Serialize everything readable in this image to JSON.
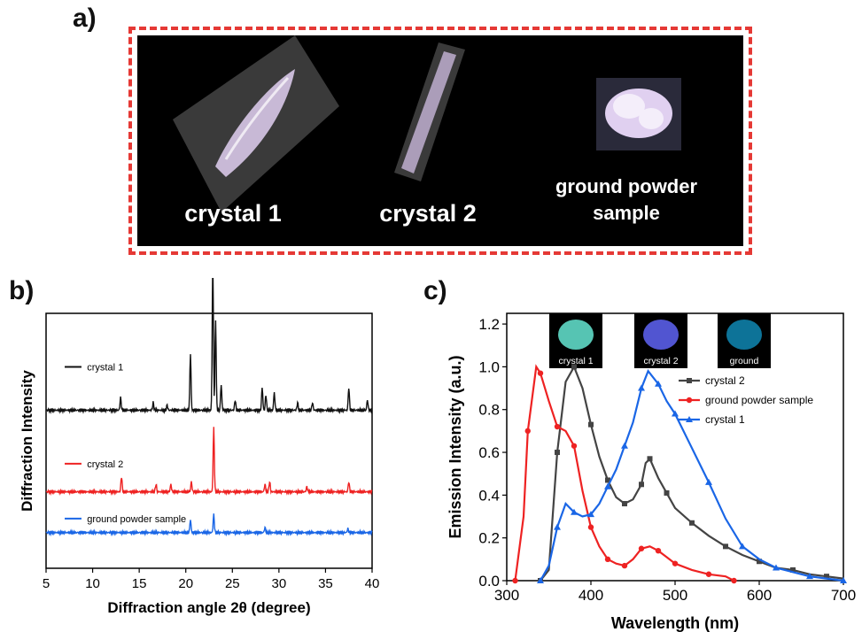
{
  "panel_a": {
    "label": "a)",
    "photo_labels": [
      "crystal 1",
      "crystal 2",
      "ground powder sample"
    ],
    "photo_label_lines": [
      [
        "crystal 1"
      ],
      [
        "crystal 2"
      ],
      [
        "ground powder",
        "sample"
      ]
    ]
  },
  "panel_b": {
    "label": "b)"
  },
  "panel_c": {
    "label": "c)",
    "inset_labels": [
      "crystal 1",
      "crystal 2",
      "ground"
    ]
  },
  "colors": {
    "black": "#111111",
    "red": "#ee2222",
    "blue": "#1a66e6",
    "gray": "#444444",
    "dashed_border": "#e53935"
  },
  "chart_data": [
    {
      "type": "line",
      "panel": "b",
      "xlabel": "Diffraction angle 2θ (degree)",
      "ylabel": "Diffraction Intensity",
      "xlim": [
        5,
        40
      ],
      "xticks": [
        5,
        10,
        15,
        20,
        25,
        30,
        35,
        40
      ],
      "legend": "inline labels above each trace",
      "series": [
        {
          "name": "crystal 1",
          "color": "#111111",
          "offset": 0.62,
          "peaks": [
            [
              13.0,
              0.05
            ],
            [
              16.5,
              0.03
            ],
            [
              18.0,
              0.02
            ],
            [
              20.5,
              0.22
            ],
            [
              22.9,
              0.6
            ],
            [
              23.2,
              0.35
            ],
            [
              23.8,
              0.1
            ],
            [
              25.3,
              0.04
            ],
            [
              28.2,
              0.09
            ],
            [
              28.6,
              0.06
            ],
            [
              29.5,
              0.07
            ],
            [
              32.0,
              0.03
            ],
            [
              33.6,
              0.03
            ],
            [
              37.5,
              0.09
            ],
            [
              39.5,
              0.04
            ]
          ]
        },
        {
          "name": "crystal 2",
          "color": "#ee2222",
          "offset": 0.3,
          "peaks": [
            [
              13.1,
              0.06
            ],
            [
              16.8,
              0.03
            ],
            [
              18.4,
              0.03
            ],
            [
              20.6,
              0.04
            ],
            [
              23.0,
              0.25
            ],
            [
              28.5,
              0.03
            ],
            [
              29.0,
              0.04
            ],
            [
              33.0,
              0.02
            ],
            [
              37.5,
              0.04
            ]
          ]
        },
        {
          "name": "ground powder sample",
          "color": "#1a66e6",
          "offset": 0.14,
          "peaks": [
            [
              20.5,
              0.05
            ],
            [
              23.0,
              0.07
            ],
            [
              28.5,
              0.02
            ],
            [
              37.4,
              0.015
            ]
          ]
        }
      ]
    },
    {
      "type": "line",
      "panel": "c",
      "xlabel": "Wavelength (nm)",
      "ylabel": "Emission Intensity (a.u.)",
      "xlim": [
        300,
        700
      ],
      "ylim": [
        0,
        1.25
      ],
      "xticks": [
        300,
        400,
        500,
        600,
        700
      ],
      "yticks": [
        0.0,
        0.2,
        0.4,
        0.6,
        0.8,
        1.0,
        1.2
      ],
      "legend": "center-right",
      "series": [
        {
          "name": "crystal 2",
          "color": "#444444",
          "marker": "square",
          "x": [
            340,
            350,
            360,
            370,
            380,
            390,
            400,
            410,
            420,
            430,
            440,
            450,
            460,
            465,
            470,
            480,
            490,
            500,
            520,
            540,
            560,
            580,
            600,
            620,
            640,
            660,
            680,
            700
          ],
          "y": [
            0.0,
            0.05,
            0.6,
            0.93,
            1.0,
            0.9,
            0.73,
            0.58,
            0.47,
            0.39,
            0.36,
            0.38,
            0.45,
            0.55,
            0.57,
            0.48,
            0.41,
            0.34,
            0.27,
            0.21,
            0.16,
            0.12,
            0.09,
            0.06,
            0.05,
            0.03,
            0.02,
            0.01
          ]
        },
        {
          "name": "ground powder sample",
          "color": "#ee2222",
          "marker": "circle",
          "x": [
            310,
            320,
            325,
            335,
            340,
            350,
            360,
            370,
            380,
            390,
            400,
            410,
            420,
            430,
            440,
            450,
            460,
            470,
            480,
            490,
            500,
            520,
            540,
            560,
            570
          ],
          "y": [
            0.0,
            0.3,
            0.7,
            1.0,
            0.97,
            0.84,
            0.72,
            0.7,
            0.63,
            0.42,
            0.25,
            0.16,
            0.1,
            0.08,
            0.07,
            0.1,
            0.15,
            0.16,
            0.14,
            0.11,
            0.08,
            0.05,
            0.03,
            0.02,
            0.0
          ]
        },
        {
          "name": "crystal 1",
          "color": "#1a66e6",
          "marker": "triangle",
          "x": [
            340,
            350,
            360,
            370,
            380,
            390,
            400,
            410,
            420,
            430,
            440,
            450,
            460,
            468,
            480,
            490,
            500,
            520,
            540,
            560,
            580,
            600,
            620,
            640,
            660,
            680,
            700
          ],
          "y": [
            0.0,
            0.07,
            0.25,
            0.36,
            0.32,
            0.3,
            0.31,
            0.36,
            0.44,
            0.52,
            0.63,
            0.74,
            0.9,
            0.98,
            0.92,
            0.84,
            0.78,
            0.62,
            0.46,
            0.29,
            0.16,
            0.1,
            0.06,
            0.04,
            0.02,
            0.01,
            0.0
          ]
        }
      ]
    }
  ]
}
